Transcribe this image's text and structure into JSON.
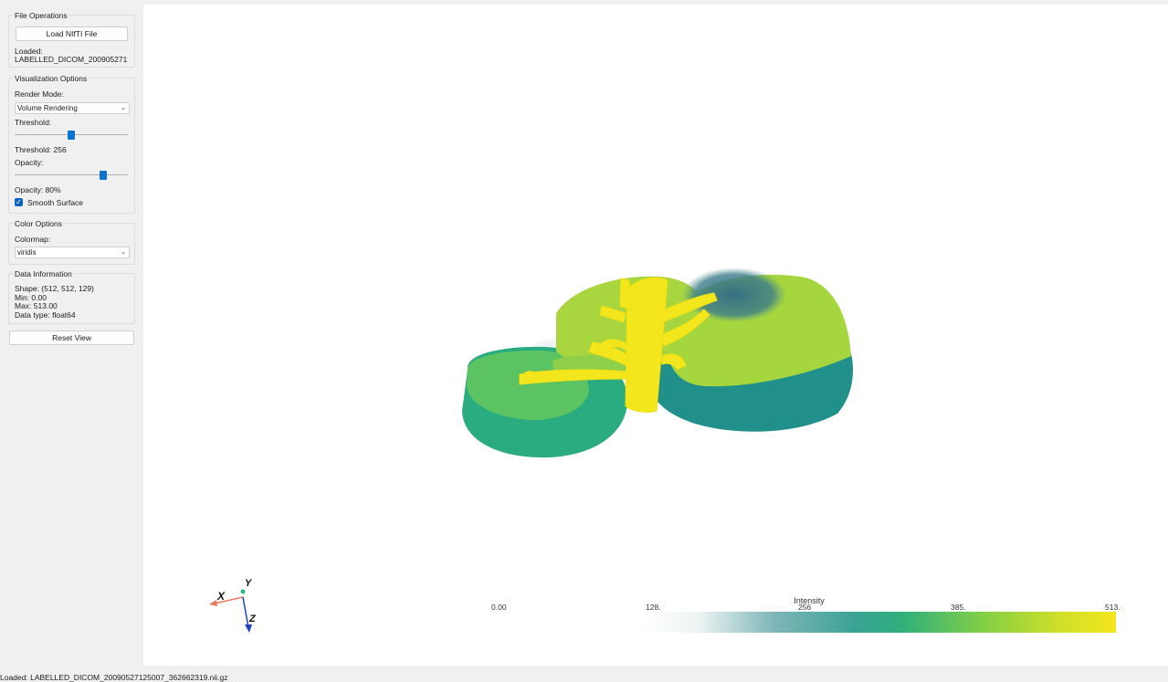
{
  "file_operations": {
    "title": "File Operations",
    "load_button": "Load NIfTI File",
    "loaded_label": "Loaded:",
    "loaded_file": "LABELLED_DICOM_20090527125007_362662319.nii.gz"
  },
  "visualization": {
    "title": "Visualization Options",
    "render_mode_label": "Render Mode:",
    "render_mode_value": "Volume Rendering",
    "threshold_label": "Threshold:",
    "threshold_value_text": "Threshold: 256",
    "threshold_fraction": 0.5,
    "opacity_label": "Opacity:",
    "opacity_value_text": "Opacity: 80%",
    "opacity_fraction": 0.8,
    "smooth_surface_label": "Smooth Surface",
    "smooth_surface_checked": true
  },
  "color_options": {
    "title": "Color Options",
    "colormap_label": "Colormap:",
    "colormap_value": "viridis"
  },
  "data_information": {
    "title": "Data Information",
    "shape": "Shape: (512, 512, 129)",
    "min": "Min: 0.00",
    "max": "Max: 513.00",
    "dtype": "Data type: float64"
  },
  "reset_view_button": "Reset View",
  "axes": {
    "x": "X",
    "y": "Y",
    "z": "Z"
  },
  "colorbar": {
    "title": "Intensity",
    "ticks": [
      "0.00",
      "128.",
      "256",
      "385.",
      "513."
    ]
  },
  "status_bar": "Loaded: LABELLED_DICOM_20090527125007_362662319.nii.gz",
  "colors": {
    "accent": "#0a74d0",
    "viridis_dark": "#3b6f86",
    "viridis_teal": "#22908a",
    "viridis_green": "#2db07a",
    "viridis_lime": "#a8d83a",
    "viridis_yellow": "#f4e61c"
  }
}
